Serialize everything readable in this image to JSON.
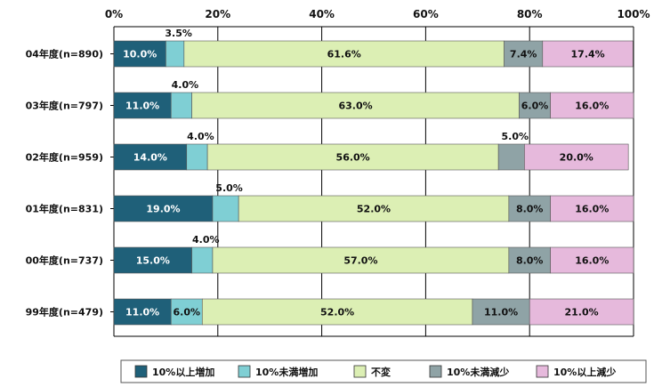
{
  "chart_data": {
    "type": "bar",
    "orientation": "horizontal",
    "stacked": true,
    "title": "",
    "xlabel": "",
    "ylabel": "",
    "xlim": [
      0,
      100
    ],
    "x_ticks": [
      "0%",
      "20%",
      "40%",
      "60%",
      "80%",
      "100%"
    ],
    "legend_position": "bottom",
    "categories": [
      "04年度(n=890)",
      "03年度(n=797)",
      "02年度(n=959)",
      "01年度(n=831)",
      "00年度(n=737)",
      "99年度(n=479)"
    ],
    "series": [
      {
        "name": "10%以上増加",
        "color": "#1f6079",
        "values": [
          10.0,
          11.0,
          14.0,
          19.0,
          15.0,
          11.0
        ],
        "labels": [
          "10.0%",
          "11.0%",
          "14.0%",
          "19.0%",
          "15.0%",
          "11.0%"
        ]
      },
      {
        "name": "10%未満増加",
        "color": "#7fcfd4",
        "values": [
          3.5,
          4.0,
          4.0,
          5.0,
          4.0,
          6.0
        ],
        "labels": [
          "3.5%",
          "4.0%",
          "4.0%",
          "5.0%",
          "4.0%",
          "6.0%"
        ]
      },
      {
        "name": "不変",
        "color": "#dcefb4",
        "values": [
          61.6,
          63.0,
          56.0,
          52.0,
          57.0,
          52.0
        ],
        "labels": [
          "61.6%",
          "63.0%",
          "56.0%",
          "52.0%",
          "57.0%",
          "52.0%"
        ]
      },
      {
        "name": "10%未満減少",
        "color": "#8fa3a6",
        "values": [
          7.4,
          6.0,
          5.0,
          8.0,
          8.0,
          11.0
        ],
        "labels": [
          "7.4%",
          "6.0%",
          "5.0%",
          "8.0%",
          "8.0%",
          "11.0%"
        ]
      },
      {
        "name": "10%以上減少",
        "color": "#e6b9dc",
        "values": [
          17.4,
          16.0,
          20.0,
          16.0,
          16.0,
          21.0
        ],
        "labels": [
          "17.4%",
          "16.0%",
          "20.0%",
          "16.0%",
          "16.0%",
          "21.0%"
        ]
      }
    ]
  }
}
